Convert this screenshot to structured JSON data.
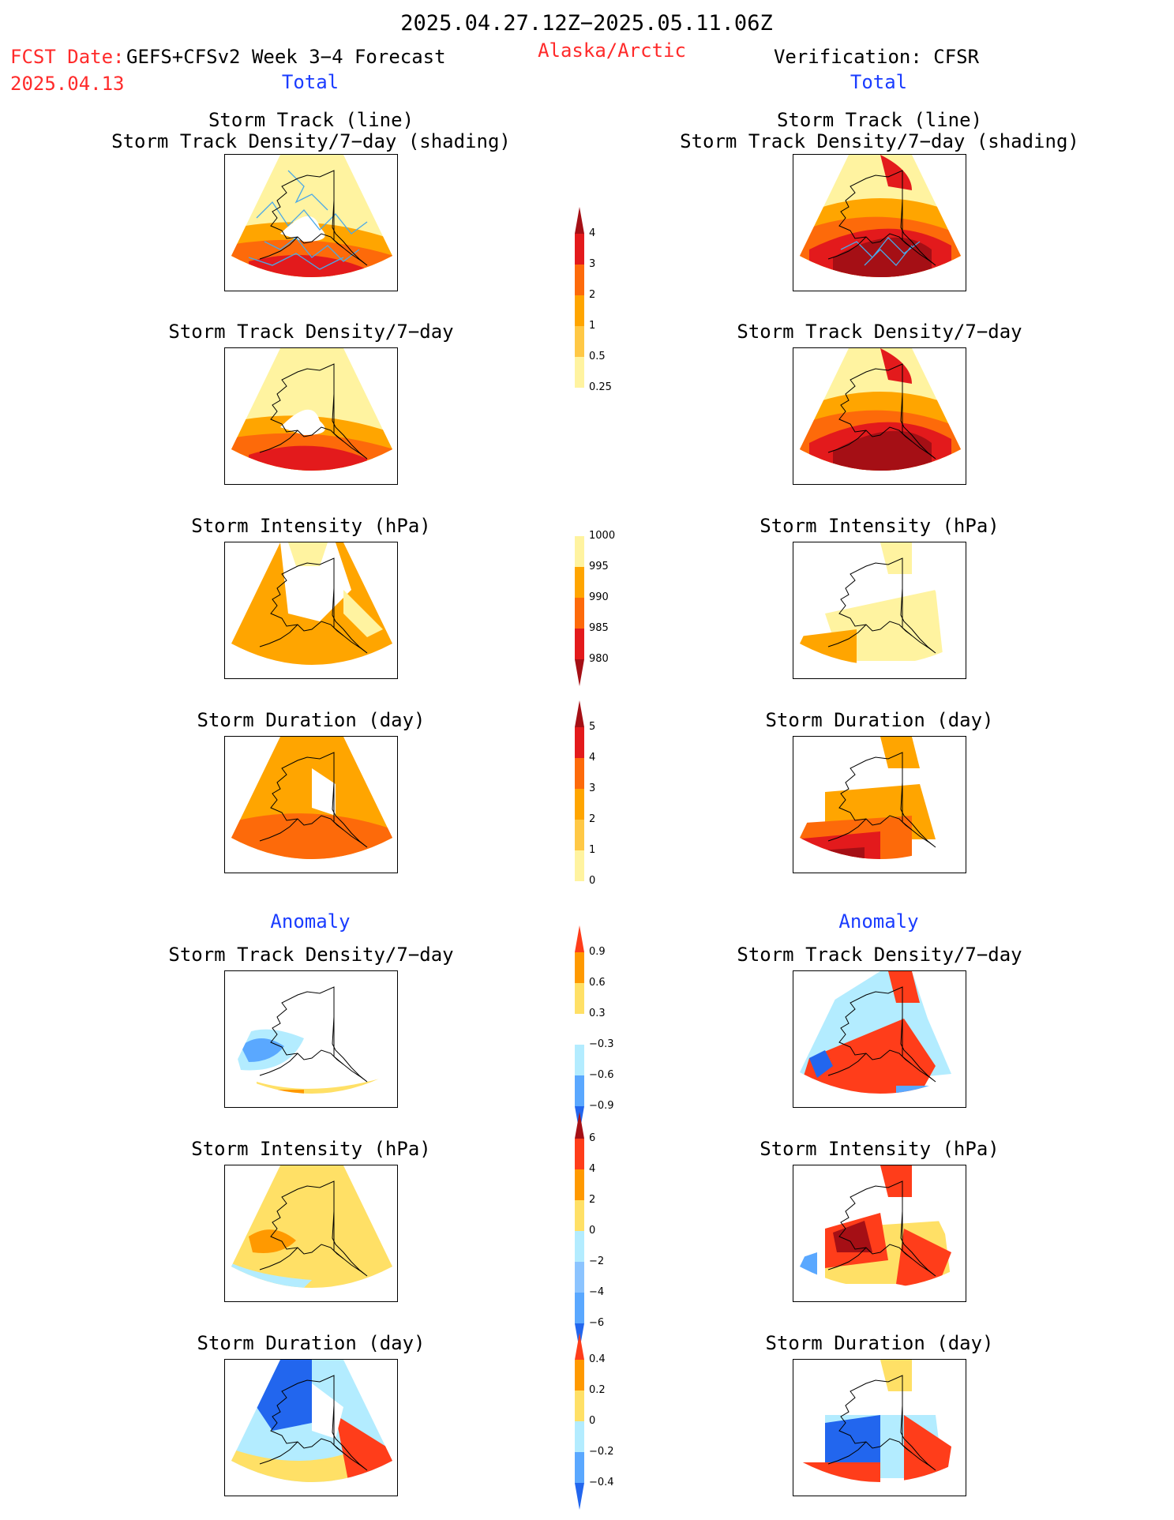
{
  "header": {
    "date_range": "2025.04.27.12Z−2025.05.11.06Z",
    "fcst_date_label": "FCST Date:",
    "fcst_date_value": "2025.04.13",
    "model": "GEFS+CFSv2 Week 3−4 Forecast",
    "region": "Alaska/Arctic",
    "verification": "Verification: CFSR",
    "total_left": "Total",
    "total_right": "Total",
    "anomaly_left": "Anomaly",
    "anomaly_right": "Anomaly"
  },
  "panels": [
    {
      "id": "track-left",
      "title": "Storm Track (line)\nStorm Track Density/7−day (shading)",
      "fill": "track_fcst"
    },
    {
      "id": "track-right",
      "title": "Storm Track (line)\nStorm Track Density/7−day (shading)",
      "fill": "track_obs"
    },
    {
      "id": "density-left",
      "title": "Storm Track Density/7−day",
      "fill": "dens_fcst"
    },
    {
      "id": "density-right",
      "title": "Storm Track Density/7−day",
      "fill": "dens_obs"
    },
    {
      "id": "intensity-left",
      "title": "Storm Intensity (hPa)",
      "fill": "int_fcst"
    },
    {
      "id": "intensity-right",
      "title": "Storm Intensity (hPa)",
      "fill": "int_obs"
    },
    {
      "id": "duration-left",
      "title": "Storm Duration (day)",
      "fill": "dur_fcst"
    },
    {
      "id": "duration-right",
      "title": "Storm Duration (day)",
      "fill": "dur_obs"
    },
    {
      "id": "anom-density-left",
      "title": "Storm Track Density/7−day",
      "fill": "adens_fcst"
    },
    {
      "id": "anom-density-right",
      "title": "Storm Track Density/7−day",
      "fill": "adens_obs"
    },
    {
      "id": "anom-intensity-left",
      "title": "Storm Intensity (hPa)",
      "fill": "aint_fcst"
    },
    {
      "id": "anom-intensity-right",
      "title": "Storm Intensity (hPa)",
      "fill": "aint_obs"
    },
    {
      "id": "anom-duration-left",
      "title": "Storm Duration (day)",
      "fill": "adur_fcst"
    },
    {
      "id": "anom-duration-right",
      "title": "Storm Duration (day)",
      "fill": "adur_obs"
    }
  ],
  "colorbars": [
    {
      "id": "density",
      "labels": [
        "4",
        "3",
        "2",
        "1",
        "0.5",
        "0.25"
      ],
      "colors": [
        "#a50f15",
        "#e31a1c",
        "#fd6a0a",
        "#ffa500",
        "#ffc845",
        "#fff3a0",
        "#ffffff"
      ]
    },
    {
      "id": "intensity",
      "labels": [
        "1000",
        "995",
        "990",
        "985",
        "980"
      ],
      "colors": [
        "#ffffff",
        "#fff3a0",
        "#ffa500",
        "#fd6a0a",
        "#e31a1c",
        "#a50f15"
      ]
    },
    {
      "id": "duration",
      "labels": [
        "5",
        "4",
        "3",
        "2",
        "1",
        "0"
      ],
      "colors": [
        "#a50f15",
        "#e31a1c",
        "#fd6a0a",
        "#ffa500",
        "#ffc845",
        "#fff3a0",
        "#ffffff"
      ]
    },
    {
      "id": "anom-density",
      "labels": [
        "0.9",
        "0.6",
        "0.3",
        "−0.3",
        "−0.6",
        "−0.9"
      ],
      "colors": [
        "#ff3d1a",
        "#ff9900",
        "#ffe066",
        "#ffffff",
        "#b3ecff",
        "#5aa8ff",
        "#2266ee"
      ]
    },
    {
      "id": "anom-intensity",
      "labels": [
        "6",
        "4",
        "2",
        "0",
        "−2",
        "−4",
        "−6"
      ],
      "colors": [
        "#a50f15",
        "#ff3d1a",
        "#ff9900",
        "#ffe066",
        "#b3ecff",
        "#8cc4ff",
        "#5aa8ff",
        "#2266ee"
      ]
    },
    {
      "id": "anom-duration",
      "labels": [
        "0.4",
        "0.2",
        "0",
        "−0.2",
        "−0.4"
      ],
      "colors": [
        "#ff3d1a",
        "#ff9900",
        "#ffe066",
        "#b3ecff",
        "#5aa8ff",
        "#2266ee"
      ]
    }
  ]
}
